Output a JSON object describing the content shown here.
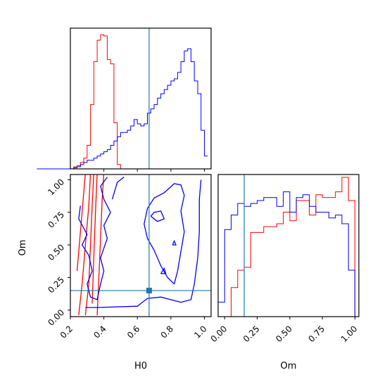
{
  "chart_data": {
    "type": "corner",
    "parameters": [
      "H0",
      "Om"
    ],
    "truth": {
      "H0": 0.67,
      "Om": 0.15,
      "color": "#1f77b4"
    },
    "series": [
      {
        "color": "#ff0000",
        "hist_H0": {
          "bin_width": 0.02,
          "start": 0.0,
          "counts": [
            0,
            0,
            0,
            0,
            0,
            0,
            0,
            0,
            0,
            0,
            0,
            2,
            3,
            6,
            10,
            22,
            60,
            100,
            120,
            125,
            124,
            102,
            98,
            43,
            4,
            0,
            0,
            0,
            0,
            0,
            0,
            0,
            0,
            0,
            0,
            0,
            0,
            0,
            0,
            0,
            0,
            0,
            0,
            0,
            0,
            0,
            0,
            0,
            0,
            0,
            0
          ]
        },
        "hist_Om": {
          "bins": [
            -0.05,
            0.0,
            0.05,
            0.1,
            0.15,
            0.2,
            0.25,
            0.3,
            0.35,
            0.4,
            0.45,
            0.5,
            0.55,
            0.6,
            0.65,
            0.7,
            0.75,
            0.8,
            0.85,
            0.9,
            0.95,
            1.0
          ],
          "counts": [
            0,
            0,
            2.0,
            3.2,
            3.4,
            5.8,
            5.8,
            6.2,
            6.2,
            6.4,
            7.2,
            6.6,
            8.0,
            8.0,
            7.0,
            8.4,
            8.2,
            8.2,
            8.6,
            9.6,
            8.0
          ]
        },
        "contours": [
          [
            [
              0.29,
              -0.04
            ],
            [
              0.31,
              0.2
            ],
            [
              0.32,
              0.5
            ],
            [
              0.33,
              0.8
            ],
            [
              0.34,
              1.05
            ]
          ],
          [
            [
              0.25,
              -0.04
            ],
            [
              0.27,
              0.2
            ],
            [
              0.29,
              0.5
            ],
            [
              0.31,
              0.8
            ],
            [
              0.32,
              1.05
            ]
          ],
          [
            [
              0.36,
              -0.04
            ],
            [
              0.37,
              0.25
            ],
            [
              0.38,
              0.55
            ],
            [
              0.39,
              0.85
            ],
            [
              0.4,
              1.05
            ]
          ],
          [
            [
              0.33,
              0.05
            ],
            [
              0.34,
              0.4
            ],
            [
              0.35,
              0.75
            ],
            [
              0.36,
              1.05
            ]
          ],
          [
            [
              0.24,
              0.3
            ],
            [
              0.26,
              0.6
            ],
            [
              0.28,
              0.9
            ],
            [
              0.29,
              1.05
            ]
          ]
        ]
      },
      {
        "color": "#0000ff",
        "hist_H0": {
          "bin_width": 0.02,
          "start": 0.0,
          "counts": [
            0,
            0,
            0,
            0,
            0,
            0,
            0,
            0,
            0,
            0,
            0,
            1,
            2,
            4,
            6,
            8,
            8,
            10,
            12,
            14,
            16,
            18,
            22,
            26,
            30,
            34,
            34,
            36,
            40,
            46,
            42,
            40,
            42,
            52,
            56,
            60,
            66,
            70,
            74,
            78,
            82,
            84,
            90,
            100,
            110,
            112,
            100,
            82,
            70,
            36,
            12
          ]
        },
        "hist_Om": {
          "bins": [
            -0.05,
            0.0,
            0.05,
            0.1,
            0.15,
            0.2,
            0.25,
            0.3,
            0.35,
            0.4,
            0.45,
            0.5,
            0.55,
            0.6,
            0.65,
            0.7,
            0.75,
            0.8,
            0.85,
            0.9,
            0.95,
            1.0
          ],
          "counts": [
            1.0,
            6.0,
            7.0,
            7.8,
            7.6,
            7.8,
            8.0,
            8.2,
            8.2,
            7.6,
            8.6,
            7.2,
            8.2,
            8.4,
            7.6,
            7.2,
            7.2,
            6.8,
            7.0,
            6.4,
            3.2
          ]
        },
        "contours": [
          [
            [
              0.26,
              0.8
            ],
            [
              0.25,
              0.7
            ],
            [
              0.3,
              0.58
            ],
            [
              0.27,
              0.5
            ],
            [
              0.31,
              0.42
            ],
            [
              0.33,
              0.3
            ],
            [
              0.3,
              0.2
            ],
            [
              0.32,
              0.1
            ],
            [
              0.36,
              0.08
            ],
            [
              0.38,
              0.2
            ],
            [
              0.4,
              0.3
            ],
            [
              0.38,
              0.4
            ],
            [
              0.42,
              0.55
            ],
            [
              0.4,
              0.65
            ],
            [
              0.44,
              0.75
            ],
            [
              0.4,
              0.85
            ],
            [
              0.38,
              0.95
            ],
            [
              0.42,
              1.02
            ]
          ],
          [
            [
              0.29,
              0.02
            ],
            [
              0.36,
              0.02
            ],
            [
              0.6,
              0.03
            ],
            [
              0.62,
              0.05
            ],
            [
              0.66,
              0.09
            ],
            [
              0.74,
              0.1
            ],
            [
              0.8,
              0.08
            ],
            [
              0.86,
              0.06
            ],
            [
              0.92,
              0.08
            ],
            [
              0.94,
              0.2
            ],
            [
              0.96,
              0.4
            ],
            [
              0.97,
              0.6
            ],
            [
              0.97,
              0.85
            ],
            [
              0.98,
              1.0
            ]
          ],
          [
            [
              0.82,
              0.2
            ],
            [
              0.78,
              0.25
            ],
            [
              0.74,
              0.34
            ],
            [
              0.7,
              0.46
            ],
            [
              0.66,
              0.55
            ],
            [
              0.64,
              0.66
            ],
            [
              0.66,
              0.78
            ],
            [
              0.7,
              0.86
            ],
            [
              0.76,
              0.9
            ],
            [
              0.82,
              0.97
            ],
            [
              0.86,
              0.96
            ],
            [
              0.88,
              0.88
            ],
            [
              0.86,
              0.76
            ],
            [
              0.88,
              0.6
            ],
            [
              0.86,
              0.45
            ],
            [
              0.84,
              0.3
            ],
            [
              0.82,
              0.2
            ]
          ],
          [
            [
              0.68,
              0.72
            ],
            [
              0.72,
              0.68
            ],
            [
              0.76,
              0.7
            ],
            [
              0.74,
              0.76
            ],
            [
              0.7,
              0.75
            ],
            [
              0.68,
              0.72
            ]
          ],
          [
            [
              0.45,
              0.85
            ],
            [
              0.48,
              0.98
            ],
            [
              0.52,
              1.02
            ]
          ],
          [
            [
              0.74,
              0.28
            ],
            [
              0.76,
              0.32
            ],
            [
              0.77,
              0.28
            ],
            [
              0.74,
              0.28
            ]
          ],
          [
            [
              0.81,
              0.5
            ],
            [
              0.82,
              0.53
            ],
            [
              0.83,
              0.5
            ],
            [
              0.81,
              0.5
            ]
          ]
        ]
      }
    ],
    "panels": {
      "hist_H0": {
        "xlim": [
          0.2,
          1.04
        ],
        "ticks": [
          0.4,
          0.6,
          0.8,
          1.0
        ]
      },
      "scatter": {
        "xlim": [
          0.2,
          1.04
        ],
        "ylim": [
          -0.05,
          1.04
        ],
        "xticks": [
          0.2,
          0.4,
          0.6,
          0.8,
          1.0
        ],
        "xtick_labels": [
          "0.2",
          "0.4",
          "0.6",
          "0.8",
          "1.0"
        ],
        "yticks": [
          0.0,
          0.25,
          0.5,
          0.75,
          1.0
        ],
        "ytick_labels": [
          "0.00",
          "0.25",
          "0.50",
          "0.75",
          "1.00"
        ],
        "xlabel": "H0",
        "ylabel": "Om"
      },
      "hist_Om": {
        "xlim": [
          -0.05,
          1.03
        ],
        "xticks": [
          0.0,
          0.25,
          0.5,
          0.75,
          1.0
        ],
        "xtick_labels": [
          "0.00",
          "0.25",
          "0.50",
          "0.75",
          "1.00"
        ],
        "xlabel": "Om"
      }
    }
  }
}
